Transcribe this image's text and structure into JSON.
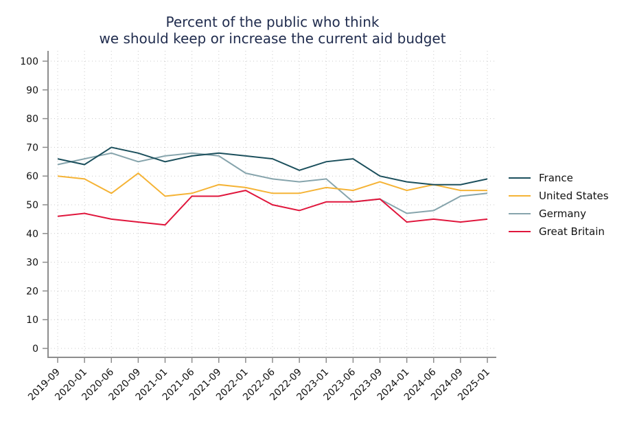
{
  "chart_data": {
    "type": "line",
    "title": [
      "Percent of the public who think",
      "we should keep or increase the current aid budget"
    ],
    "xlabel": "",
    "ylabel": "",
    "ylim": [
      0,
      100
    ],
    "yticks": [
      0,
      10,
      20,
      30,
      40,
      50,
      60,
      70,
      80,
      90,
      100
    ],
    "grid": true,
    "legend_position": "right",
    "categories": [
      "2019-09",
      "2020-01",
      "2020-06",
      "2020-09",
      "2021-01",
      "2021-06",
      "2021-09",
      "2022-01",
      "2022-06",
      "2022-09",
      "2023-01",
      "2023-06",
      "2023-09",
      "2024-01",
      "2024-06",
      "2024-09",
      "2025-01"
    ],
    "series": [
      {
        "name": "France",
        "color": "#1b4f5c",
        "values": [
          66,
          64,
          70,
          68,
          65,
          67,
          68,
          67,
          66,
          62,
          65,
          66,
          60,
          58,
          57,
          57,
          59
        ]
      },
      {
        "name": "United States",
        "color": "#f5b335",
        "values": [
          60,
          59,
          54,
          61,
          53,
          54,
          57,
          56,
          54,
          54,
          56,
          55,
          58,
          55,
          57,
          55,
          55
        ]
      },
      {
        "name": "Germany",
        "color": "#86a4ac",
        "values": [
          64,
          66,
          68,
          65,
          67,
          68,
          67,
          61,
          59,
          58,
          59,
          51,
          52,
          47,
          48,
          53,
          54
        ]
      },
      {
        "name": "Great Britain",
        "color": "#e0163c",
        "values": [
          46,
          47,
          45,
          44,
          43,
          53,
          53,
          55,
          50,
          48,
          51,
          51,
          52,
          44,
          45,
          44,
          45
        ]
      }
    ]
  }
}
